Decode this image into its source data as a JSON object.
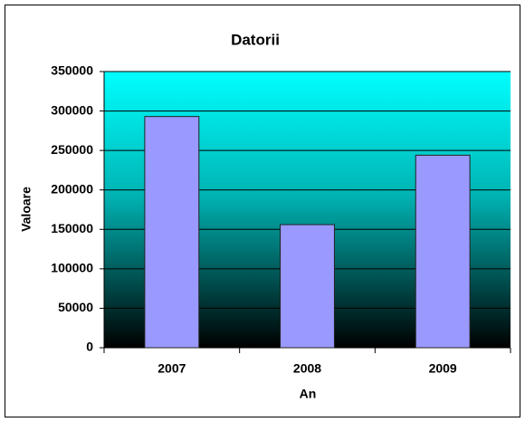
{
  "chart_data": {
    "type": "bar",
    "title": "Datorii",
    "x_label": "An",
    "y_label": "Valoare",
    "categories": [
      "2007",
      "2008",
      "2009"
    ],
    "values": [
      293000,
      156000,
      244000
    ],
    "color": "#9999ff",
    "ylim": [
      0,
      350000
    ],
    "yticks": [
      0,
      50000,
      100000,
      150000,
      200000,
      250000,
      300000,
      350000
    ],
    "grid": true
  }
}
